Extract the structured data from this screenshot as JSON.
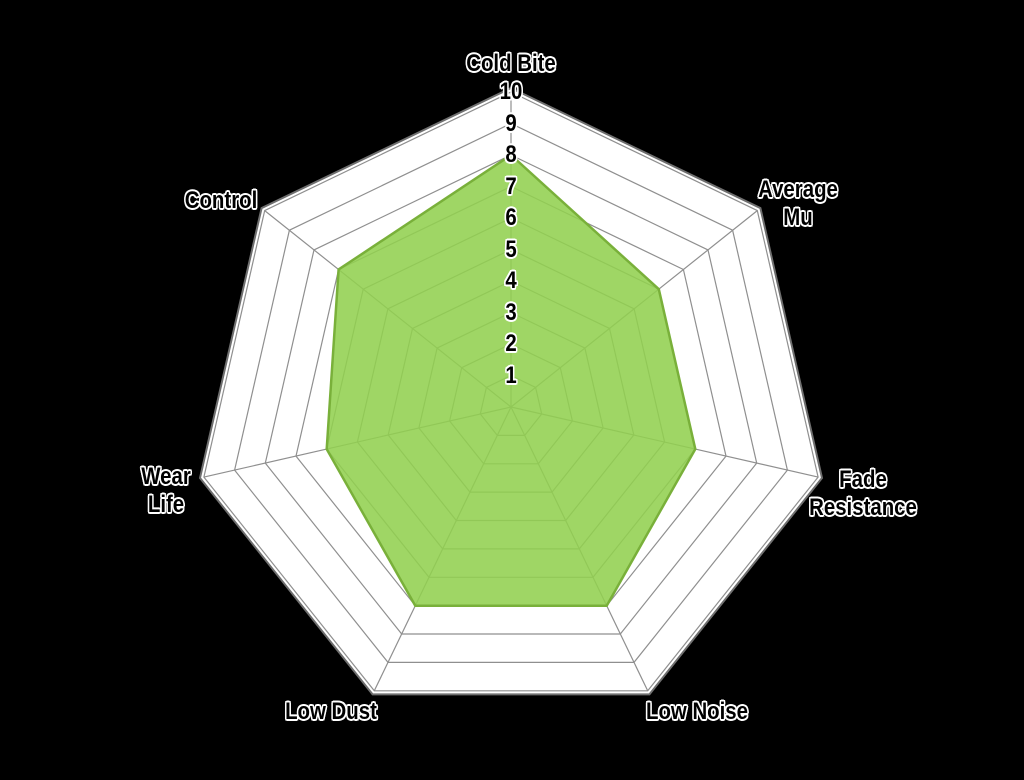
{
  "chart_data": {
    "type": "radar",
    "title": "",
    "categories": [
      "Cold Bite",
      "Average\nMu",
      "Fade\nResistance",
      "Low Noise",
      "Low Dust",
      "Wear\nLife",
      "Control"
    ],
    "series": [
      {
        "values": [
          8,
          6,
          6,
          7,
          7,
          6,
          7
        ]
      }
    ],
    "radial_axis": {
      "min": 0,
      "max": 10,
      "ticks": [
        1,
        2,
        3,
        4,
        5,
        6,
        7,
        8,
        9,
        10
      ]
    },
    "legend_position": "none",
    "grid": true,
    "colors": {
      "background": "#000000",
      "plot_fill": "#ffffff",
      "gridline": "#8f8f8f",
      "outer_border": "#6f6f6f",
      "series_fill": "#92d050",
      "series_fill_opacity": 0.88,
      "series_stroke": "#79b03a",
      "label_text": "#000000",
      "label_halo": "#ffffff"
    }
  }
}
